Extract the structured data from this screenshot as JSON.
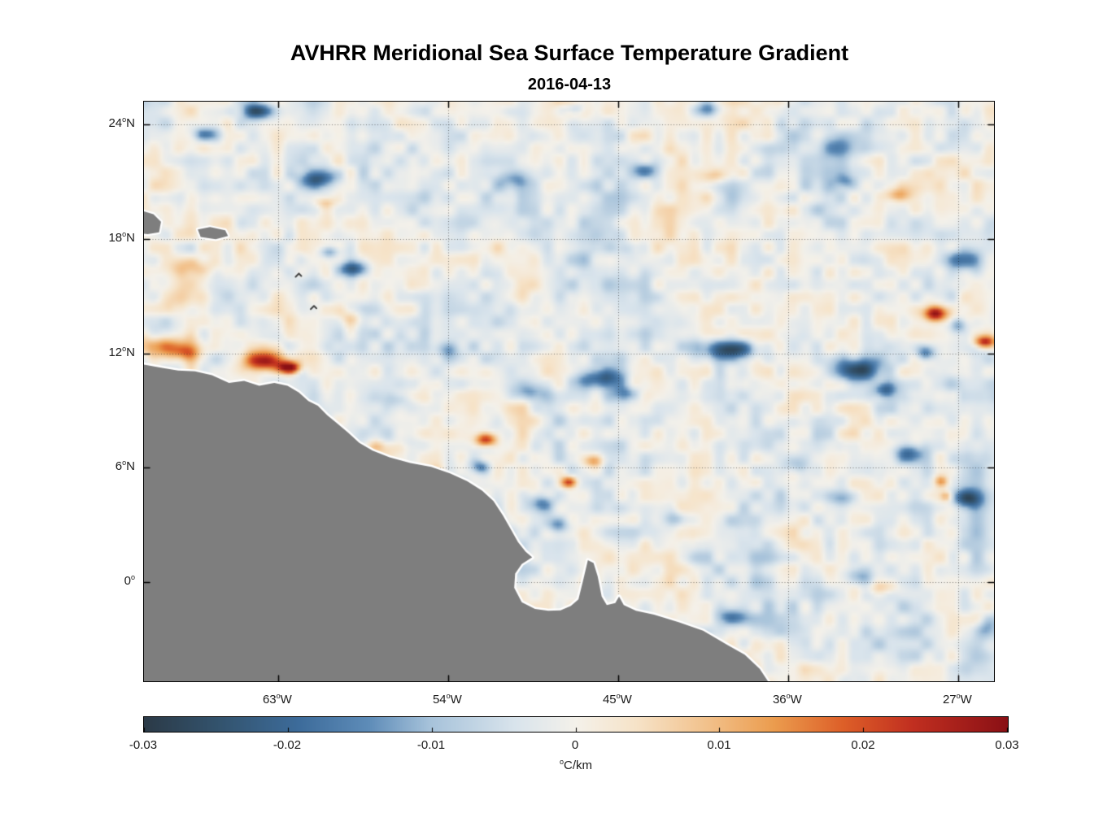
{
  "figure": {
    "title": "AVHRR Meridional Sea Surface Temperature Gradient",
    "subtitle": "2016-04-13"
  },
  "chart_data": {
    "type": "heatmap",
    "title": "AVHRR Meridional Sea Surface Temperature Gradient",
    "date": "2016-04-13",
    "variable": "Meridional sea surface temperature gradient",
    "units": "°C/km",
    "lon_left_w": 70.1,
    "lon_right_w": 25.1,
    "lat_top": 25.2,
    "lat_bottom": -5.2,
    "grid_style": "dotted",
    "deg_char": "o",
    "x_ticks": [
      {
        "num": "63",
        "hem": "W",
        "lon": 63
      },
      {
        "num": "54",
        "hem": "W",
        "lon": 54
      },
      {
        "num": "45",
        "hem": "W",
        "lon": 45
      },
      {
        "num": "36",
        "hem": "W",
        "lon": 36
      },
      {
        "num": "27",
        "hem": "W",
        "lon": 27
      }
    ],
    "y_ticks": [
      {
        "num": "24",
        "hem": "N",
        "lat": 24
      },
      {
        "num": "18",
        "hem": "N",
        "lat": 18
      },
      {
        "num": "12",
        "hem": "N",
        "lat": 12
      },
      {
        "num": "6",
        "hem": "N",
        "lat": 6
      },
      {
        "num": "0",
        "hem": "",
        "lat": 0
      }
    ],
    "colorbar": {
      "min": -0.03,
      "max": 0.03,
      "units_sup": "o",
      "units_text": "C/km",
      "ticks": [
        {
          "value": -0.03,
          "label": "-0.03"
        },
        {
          "value": -0.02,
          "label": "-0.02"
        },
        {
          "value": -0.01,
          "label": "-0.01"
        },
        {
          "value": 0,
          "label": "0"
        },
        {
          "value": 0.01,
          "label": "0.01"
        },
        {
          "value": 0.02,
          "label": "0.02"
        },
        {
          "value": 0.03,
          "label": "0.03"
        }
      ],
      "stops": [
        {
          "t": 0.0,
          "c": "#2b3a47"
        },
        {
          "t": 0.09,
          "c": "#33546f"
        },
        {
          "t": 0.18,
          "c": "#3d6c9b"
        },
        {
          "t": 0.26,
          "c": "#5e8cb8"
        },
        {
          "t": 0.33,
          "c": "#a6c2da"
        },
        {
          "t": 0.43,
          "c": "#d9e4ec"
        },
        {
          "t": 0.5,
          "c": "#f4f1ea"
        },
        {
          "t": 0.57,
          "c": "#f6e3c8"
        },
        {
          "t": 0.65,
          "c": "#f2c28d"
        },
        {
          "t": 0.73,
          "c": "#eb9c4e"
        },
        {
          "t": 0.81,
          "c": "#dd5f28"
        },
        {
          "t": 0.89,
          "c": "#c12f20"
        },
        {
          "t": 1.0,
          "c": "#8a1015"
        }
      ]
    },
    "land_color": "#7e7e7e",
    "coast_halo_color": "#ffffff",
    "frame_color": "#000000",
    "field": {
      "bias": -0.0015,
      "noise_seed": 7,
      "noise_octaves": [
        {
          "scale": 0.65,
          "amp": 0.0045
        },
        {
          "scale": 1.6,
          "amp": 0.0038
        },
        {
          "scale": 4.0,
          "amp": 0.0028
        }
      ],
      "features_columns": [
        "lon_w",
        "lat_deg_n",
        "sigma_lon_deg",
        "sigma_lat_deg",
        "amplitude_c_per_km"
      ],
      "features": [
        [
          63.6,
          11.6,
          1.15,
          0.5,
          0.03
        ],
        [
          62.4,
          11.25,
          0.55,
          0.3,
          0.034
        ],
        [
          69.3,
          12.35,
          1.5,
          0.55,
          0.018
        ],
        [
          67.9,
          12.05,
          0.8,
          0.4,
          0.012
        ],
        [
          67.6,
          16.55,
          1.2,
          0.6,
          0.012
        ],
        [
          68.5,
          14.8,
          1.5,
          0.8,
          0.007
        ],
        [
          60.5,
          19.9,
          0.55,
          0.3,
          0.008
        ],
        [
          59.2,
          13.9,
          0.8,
          0.5,
          0.007
        ],
        [
          57.5,
          7.05,
          1.3,
          0.4,
          0.011
        ],
        [
          52.0,
          7.45,
          0.55,
          0.35,
          0.028
        ],
        [
          47.6,
          5.25,
          0.42,
          0.3,
          0.026
        ],
        [
          46.3,
          6.35,
          0.5,
          0.3,
          0.012
        ],
        [
          28.2,
          14.1,
          0.6,
          0.4,
          0.032
        ],
        [
          25.6,
          12.6,
          0.55,
          0.32,
          0.028
        ],
        [
          30.2,
          20.3,
          0.7,
          0.35,
          0.012
        ],
        [
          27.9,
          5.3,
          0.35,
          0.28,
          0.014
        ],
        [
          27.6,
          4.5,
          0.3,
          0.25,
          0.012
        ],
        [
          40.0,
          21.3,
          0.8,
          0.4,
          0.008
        ],
        [
          31.0,
          -0.3,
          0.9,
          0.35,
          0.008
        ],
        [
          64.1,
          24.7,
          0.85,
          0.4,
          -0.02
        ],
        [
          66.9,
          23.5,
          0.7,
          0.35,
          -0.014
        ],
        [
          60.9,
          21.1,
          1.0,
          0.45,
          -0.018
        ],
        [
          59.0,
          16.45,
          0.8,
          0.4,
          -0.02
        ],
        [
          60.3,
          17.3,
          0.5,
          0.3,
          -0.012
        ],
        [
          50.5,
          21.2,
          0.8,
          0.5,
          -0.012
        ],
        [
          43.6,
          21.6,
          0.7,
          0.4,
          -0.014
        ],
        [
          40.2,
          24.8,
          0.8,
          0.4,
          -0.014
        ],
        [
          47.3,
          24.85,
          0.6,
          0.3,
          -0.01
        ],
        [
          33.4,
          22.8,
          1.0,
          0.5,
          -0.012
        ],
        [
          33.0,
          21.0,
          0.5,
          0.35,
          -0.01
        ],
        [
          39.0,
          12.2,
          1.4,
          0.5,
          -0.026
        ],
        [
          45.9,
          10.7,
          1.2,
          0.5,
          -0.018
        ],
        [
          44.5,
          9.9,
          0.7,
          0.4,
          -0.012
        ],
        [
          49.75,
          9.9,
          0.9,
          0.45,
          -0.014
        ],
        [
          32.3,
          11.15,
          1.3,
          0.6,
          -0.026
        ],
        [
          30.9,
          10.1,
          0.6,
          0.4,
          -0.018
        ],
        [
          26.6,
          16.9,
          0.9,
          0.5,
          -0.022
        ],
        [
          28.7,
          12.0,
          0.5,
          0.4,
          -0.018
        ],
        [
          27.0,
          13.5,
          0.5,
          0.4,
          -0.015
        ],
        [
          29.6,
          6.8,
          0.8,
          0.5,
          -0.018
        ],
        [
          26.5,
          4.35,
          0.8,
          0.5,
          -0.02
        ],
        [
          49.1,
          4.15,
          0.7,
          0.5,
          -0.016
        ],
        [
          48.2,
          3.0,
          0.6,
          0.4,
          -0.012
        ],
        [
          42.0,
          3.3,
          0.7,
          0.4,
          -0.013
        ],
        [
          39.0,
          -1.8,
          0.8,
          0.4,
          -0.012
        ],
        [
          32.3,
          0.3,
          0.7,
          0.45,
          -0.01
        ],
        [
          54.0,
          12.2,
          0.7,
          0.4,
          -0.01
        ],
        [
          35.6,
          6.05,
          0.7,
          0.45,
          -0.012
        ],
        [
          52.3,
          6.05,
          0.5,
          0.35,
          -0.016
        ],
        [
          44.6,
          17.5,
          0.8,
          0.4,
          -0.008
        ],
        [
          25.5,
          -2.5,
          0.55,
          0.5,
          -0.012
        ],
        [
          56.6,
          9.6,
          0.7,
          0.4,
          -0.008
        ],
        [
          33.1,
          4.4,
          0.7,
          0.4,
          -0.01
        ]
      ]
    },
    "mainland_coast_lon_lat": [
      [
        70.6,
        11.5
      ],
      [
        69.2,
        11.25
      ],
      [
        68.3,
        11.1
      ],
      [
        67.4,
        11.05
      ],
      [
        66.5,
        10.85
      ],
      [
        65.6,
        10.45
      ],
      [
        64.8,
        10.55
      ],
      [
        64.0,
        10.3
      ],
      [
        63.2,
        10.45
      ],
      [
        62.5,
        10.3
      ],
      [
        61.9,
        9.95
      ],
      [
        61.4,
        9.5
      ],
      [
        60.9,
        9.25
      ],
      [
        60.4,
        8.75
      ],
      [
        59.9,
        8.35
      ],
      [
        59.3,
        7.85
      ],
      [
        58.7,
        7.3
      ],
      [
        58.0,
        6.9
      ],
      [
        57.1,
        6.55
      ],
      [
        56.0,
        6.25
      ],
      [
        54.9,
        6.05
      ],
      [
        53.9,
        5.7
      ],
      [
        53.0,
        5.3
      ],
      [
        52.2,
        4.8
      ],
      [
        51.6,
        4.25
      ],
      [
        51.1,
        3.5
      ],
      [
        50.7,
        2.8
      ],
      [
        50.3,
        2.1
      ],
      [
        49.9,
        1.6
      ],
      [
        49.55,
        1.3
      ],
      [
        50.1,
        0.95
      ],
      [
        50.45,
        0.45
      ],
      [
        50.5,
        -0.3
      ],
      [
        50.1,
        -1.05
      ],
      [
        49.4,
        -1.4
      ],
      [
        48.7,
        -1.5
      ],
      [
        48.05,
        -1.48
      ],
      [
        47.5,
        -1.25
      ],
      [
        47.1,
        -0.9
      ],
      [
        46.85,
        0.1
      ],
      [
        46.6,
        1.15
      ],
      [
        46.3,
        1.0
      ],
      [
        46.08,
        0.3
      ],
      [
        45.87,
        -0.75
      ],
      [
        45.6,
        -1.2
      ],
      [
        45.15,
        -1.1
      ],
      [
        44.95,
        -0.75
      ],
      [
        44.7,
        -1.2
      ],
      [
        44.05,
        -1.5
      ],
      [
        43.1,
        -1.7
      ],
      [
        41.8,
        -2.1
      ],
      [
        40.5,
        -2.55
      ],
      [
        39.2,
        -3.3
      ],
      [
        38.3,
        -3.8
      ],
      [
        37.5,
        -4.55
      ],
      [
        36.8,
        -5.6
      ]
    ],
    "mainland_close_point": [
      70.7,
      -5.7
    ],
    "islands": [
      {
        "name": "hispaniola-east",
        "pts": [
          [
            70.5,
            19.55
          ],
          [
            69.6,
            19.3
          ],
          [
            69.2,
            18.9
          ],
          [
            69.3,
            18.35
          ],
          [
            69.9,
            18.25
          ],
          [
            70.5,
            18.3
          ]
        ]
      },
      {
        "name": "puerto-rico",
        "pts": [
          [
            67.25,
            18.5
          ],
          [
            66.6,
            18.62
          ],
          [
            65.8,
            18.45
          ],
          [
            65.65,
            18.15
          ],
          [
            66.3,
            17.98
          ],
          [
            67.1,
            18.1
          ]
        ]
      }
    ],
    "small_island_marks": [
      [
        61.9,
        16.1
      ],
      [
        61.1,
        14.4
      ]
    ]
  }
}
